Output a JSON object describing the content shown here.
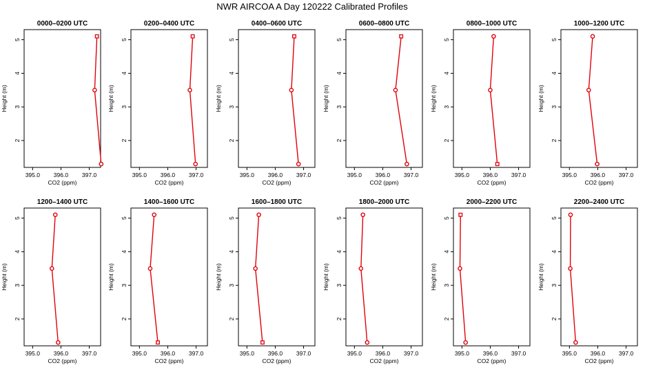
{
  "figure": {
    "title": "NWR AIRCOA A  Day 120222  Calibrated Profiles"
  },
  "chart_data": [
    {
      "type": "line",
      "title": "0000–0200 UTC",
      "xlabel": "CO2 (ppm)",
      "ylabel": "Height (m)",
      "xlim": [
        394.7,
        397.4
      ],
      "ylim": [
        1.2,
        5.3
      ],
      "xticks": [
        "395.0",
        "396.0",
        "397.0"
      ],
      "yticks": [
        "2",
        "3",
        "4",
        "5"
      ],
      "xtick_values": [
        395,
        396,
        397
      ],
      "ytick_values": [
        2,
        3,
        4,
        5
      ],
      "series": [
        {
          "color": "#e0000a",
          "x": [
            397.42,
            397.19,
            397.27
          ],
          "y": [
            1.3,
            3.5,
            5.1
          ],
          "markers": [
            "circle",
            "circle",
            "square"
          ]
        }
      ]
    },
    {
      "type": "line",
      "title": "0200–0400 UTC",
      "xlabel": "CO2 (ppm)",
      "ylabel": "Height (m)",
      "xlim": [
        394.7,
        397.4
      ],
      "ylim": [
        1.2,
        5.3
      ],
      "xticks": [
        "395.0",
        "396.0",
        "397.0"
      ],
      "yticks": [
        "2",
        "3",
        "4",
        "5"
      ],
      "xtick_values": [
        395,
        396,
        397
      ],
      "ytick_values": [
        2,
        3,
        4,
        5
      ],
      "series": [
        {
          "color": "#e0000a",
          "x": [
            396.98,
            396.78,
            396.88
          ],
          "y": [
            1.3,
            3.5,
            5.1
          ],
          "markers": [
            "circle",
            "circle",
            "square"
          ]
        }
      ]
    },
    {
      "type": "line",
      "title": "0400–0600 UTC",
      "xlabel": "CO2 (ppm)",
      "ylabel": "Height (m)",
      "xlim": [
        394.7,
        397.4
      ],
      "ylim": [
        1.2,
        5.3
      ],
      "xticks": [
        "395.0",
        "396.0",
        "397.0"
      ],
      "yticks": [
        "2",
        "3",
        "4",
        "5"
      ],
      "xtick_values": [
        395,
        396,
        397
      ],
      "ytick_values": [
        2,
        3,
        4,
        5
      ],
      "series": [
        {
          "color": "#e0000a",
          "x": [
            396.82,
            396.57,
            396.67
          ],
          "y": [
            1.3,
            3.5,
            5.1
          ],
          "markers": [
            "circle",
            "circle",
            "square"
          ]
        }
      ]
    },
    {
      "type": "line",
      "title": "0600–0800 UTC",
      "xlabel": "CO2 (ppm)",
      "ylabel": "Height (m)",
      "xlim": [
        394.7,
        397.4
      ],
      "ylim": [
        1.2,
        5.3
      ],
      "xticks": [
        "395.0",
        "396.0",
        "397.0"
      ],
      "yticks": [
        "2",
        "3",
        "4",
        "5"
      ],
      "xtick_values": [
        395,
        396,
        397
      ],
      "ytick_values": [
        2,
        3,
        4,
        5
      ],
      "series": [
        {
          "color": "#e0000a",
          "x": [
            396.85,
            396.45,
            396.65
          ],
          "y": [
            1.3,
            3.5,
            5.1
          ],
          "markers": [
            "circle",
            "circle",
            "square"
          ]
        }
      ]
    },
    {
      "type": "line",
      "title": "0800–1000 UTC",
      "xlabel": "CO2 (ppm)",
      "ylabel": "Height (m)",
      "xlim": [
        394.7,
        397.4
      ],
      "ylim": [
        1.2,
        5.3
      ],
      "xticks": [
        "395.0",
        "396.0",
        "397.0"
      ],
      "yticks": [
        "2",
        "3",
        "4",
        "5"
      ],
      "xtick_values": [
        395,
        396,
        397
      ],
      "ytick_values": [
        2,
        3,
        4,
        5
      ],
      "series": [
        {
          "color": "#e0000a",
          "x": [
            396.25,
            396.0,
            396.12
          ],
          "y": [
            1.3,
            3.5,
            5.1
          ],
          "markers": [
            "square",
            "circle",
            "circle"
          ]
        }
      ]
    },
    {
      "type": "line",
      "title": "1000–1200 UTC",
      "xlabel": "CO2 (ppm)",
      "ylabel": "Height (m)",
      "xlim": [
        394.7,
        397.4
      ],
      "ylim": [
        1.2,
        5.3
      ],
      "xticks": [
        "395.0",
        "396.0",
        "397.0"
      ],
      "yticks": [
        "2",
        "3",
        "4",
        "5"
      ],
      "xtick_values": [
        395,
        396,
        397
      ],
      "ytick_values": [
        2,
        3,
        4,
        5
      ],
      "series": [
        {
          "color": "#e0000a",
          "x": [
            395.98,
            395.68,
            395.82
          ],
          "y": [
            1.3,
            3.5,
            5.1
          ],
          "markers": [
            "circle",
            "circle",
            "circle"
          ]
        }
      ]
    },
    {
      "type": "line",
      "title": "1200–1400 UTC",
      "xlabel": "CO2 (ppm)",
      "ylabel": "Height (m)",
      "xlim": [
        394.7,
        397.4
      ],
      "ylim": [
        1.2,
        5.3
      ],
      "xticks": [
        "395.0",
        "396.0",
        "397.0"
      ],
      "yticks": [
        "2",
        "3",
        "4",
        "5"
      ],
      "xtick_values": [
        395,
        396,
        397
      ],
      "ytick_values": [
        2,
        3,
        4,
        5
      ],
      "series": [
        {
          "color": "#e0000a",
          "x": [
            395.9,
            395.68,
            395.8
          ],
          "y": [
            1.3,
            3.5,
            5.1
          ],
          "markers": [
            "circle",
            "circle",
            "circle"
          ]
        }
      ]
    },
    {
      "type": "line",
      "title": "1400–1600 UTC",
      "xlabel": "CO2 (ppm)",
      "ylabel": "Height (m)",
      "xlim": [
        394.7,
        397.4
      ],
      "ylim": [
        1.2,
        5.3
      ],
      "xticks": [
        "395.0",
        "396.0",
        "397.0"
      ],
      "yticks": [
        "2",
        "3",
        "4",
        "5"
      ],
      "xtick_values": [
        395,
        396,
        397
      ],
      "ytick_values": [
        2,
        3,
        4,
        5
      ],
      "series": [
        {
          "color": "#e0000a",
          "x": [
            395.65,
            395.38,
            395.52
          ],
          "y": [
            1.3,
            3.5,
            5.1
          ],
          "markers": [
            "square",
            "circle",
            "circle"
          ]
        }
      ]
    },
    {
      "type": "line",
      "title": "1600–1800 UTC",
      "xlabel": "CO2 (ppm)",
      "ylabel": "Height (m)",
      "xlim": [
        394.7,
        397.4
      ],
      "ylim": [
        1.2,
        5.3
      ],
      "xticks": [
        "395.0",
        "396.0",
        "397.0"
      ],
      "yticks": [
        "2",
        "3",
        "4",
        "5"
      ],
      "xtick_values": [
        395,
        396,
        397
      ],
      "ytick_values": [
        2,
        3,
        4,
        5
      ],
      "series": [
        {
          "color": "#e0000a",
          "x": [
            395.55,
            395.3,
            395.42
          ],
          "y": [
            1.3,
            3.5,
            5.1
          ],
          "markers": [
            "square",
            "circle",
            "circle"
          ]
        }
      ]
    },
    {
      "type": "line",
      "title": "1800–2000 UTC",
      "xlabel": "CO2 (ppm)",
      "ylabel": "Height (m)",
      "xlim": [
        394.7,
        397.4
      ],
      "ylim": [
        1.2,
        5.3
      ],
      "xticks": [
        "395.0",
        "396.0",
        "397.0"
      ],
      "yticks": [
        "2",
        "3",
        "4",
        "5"
      ],
      "xtick_values": [
        395,
        396,
        397
      ],
      "ytick_values": [
        2,
        3,
        4,
        5
      ],
      "series": [
        {
          "color": "#e0000a",
          "x": [
            395.45,
            395.23,
            395.3
          ],
          "y": [
            1.3,
            3.5,
            5.1
          ],
          "markers": [
            "circle",
            "circle",
            "circle"
          ]
        }
      ]
    },
    {
      "type": "line",
      "title": "2000–2200 UTC",
      "xlabel": "CO2 (ppm)",
      "ylabel": "Height (m)",
      "xlim": [
        394.7,
        397.4
      ],
      "ylim": [
        1.2,
        5.3
      ],
      "xticks": [
        "395.0",
        "396.0",
        "397.0"
      ],
      "yticks": [
        "2",
        "3",
        "4",
        "5"
      ],
      "xtick_values": [
        395,
        396,
        397
      ],
      "ytick_values": [
        2,
        3,
        4,
        5
      ],
      "series": [
        {
          "color": "#e0000a",
          "x": [
            395.13,
            394.93,
            394.95
          ],
          "y": [
            1.3,
            3.5,
            5.1
          ],
          "markers": [
            "circle",
            "circle",
            "square"
          ]
        }
      ]
    },
    {
      "type": "line",
      "title": "2200–2400 UTC",
      "xlabel": "CO2 (ppm)",
      "ylabel": "Height (m)",
      "xlim": [
        394.7,
        397.4
      ],
      "ylim": [
        1.2,
        5.3
      ],
      "xticks": [
        "395.0",
        "396.0",
        "397.0"
      ],
      "yticks": [
        "2",
        "3",
        "4",
        "5"
      ],
      "xtick_values": [
        395,
        396,
        397
      ],
      "ytick_values": [
        2,
        3,
        4,
        5
      ],
      "series": [
        {
          "color": "#e0000a",
          "x": [
            395.22,
            395.03,
            395.04
          ],
          "y": [
            1.3,
            3.5,
            5.1
          ],
          "markers": [
            "circle",
            "circle",
            "circle"
          ]
        }
      ]
    }
  ]
}
